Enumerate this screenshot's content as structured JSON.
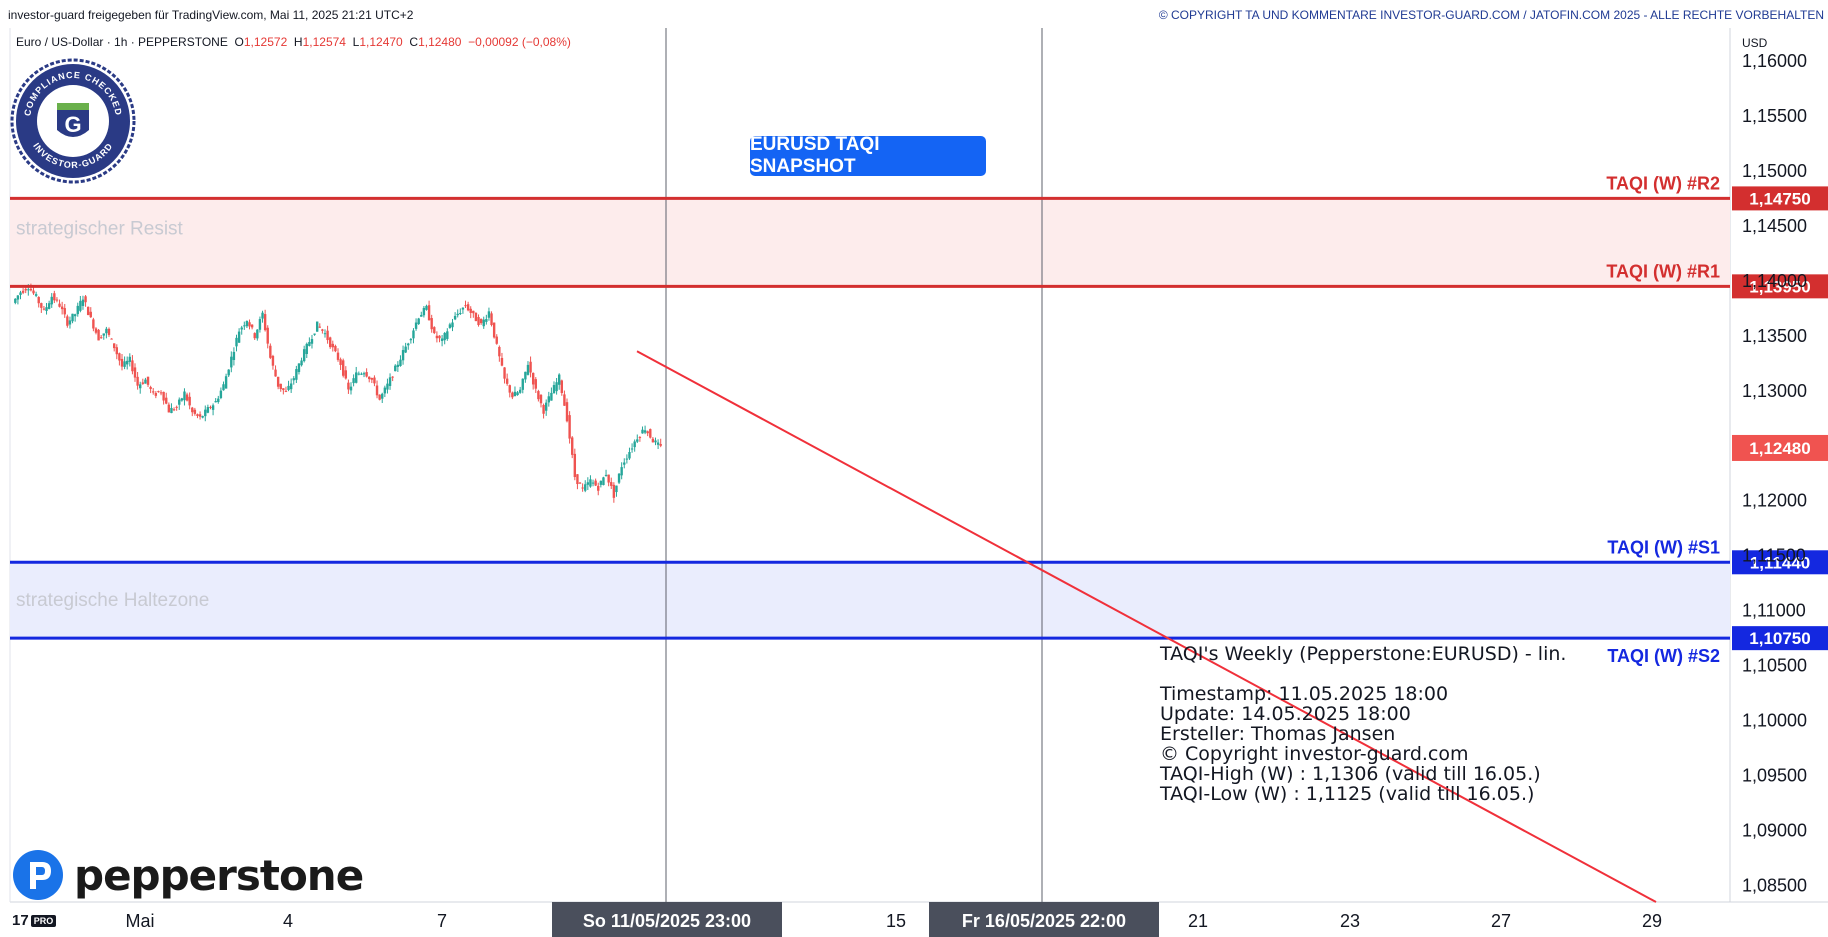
{
  "header": {
    "left_text": "investor-guard freigegeben für TradingView.com, Mai 11, 2025 21:21 UTC+2",
    "right_text": "© COPYRIGHT TA UND KOMMENTARE INVESTOR-GUARD.COM / JATOFIN.COM 2025 - ALLE RECHTE VORBEHALTEN"
  },
  "symbol": {
    "name": "Euro / US-Dollar · 1h · PEPPERSTONE",
    "o_label": "O",
    "o_value": "1,12572",
    "h_label": "H",
    "h_value": "1,12574",
    "l_label": "L",
    "l_value": "1,12470",
    "c_label": "C",
    "c_value": "1,12480",
    "change": "−0,00092 (−0,08%)"
  },
  "badge": {
    "top_text": "COMPLIANCE CHECKED",
    "bottom_text": "INVESTOR-GUARD",
    "letter": "G"
  },
  "snapshot_label": "EURUSD TAQI SNAPSHOT",
  "info_block": {
    "title": "TAQI's Weekly (Pepperstone:EURUSD) - lin.",
    "lines": [
      "Timestamp: 11.05.2025 18:00",
      "Update: 14.05.2025 18:00",
      "Ersteller: Thomas Jansen",
      "© Copyright investor-guard.com",
      "TAQI-High (W) : 1,1306 (valid till 16.05.)",
      "TAQI-Low (W) : 1,1125 (valid till 16.05.)"
    ]
  },
  "brand": {
    "name": "pepperstone",
    "tv_pro": "PRO"
  },
  "colors": {
    "resistance": "#d32f2f",
    "support": "#1428e0",
    "resist_zone": "#fdecec",
    "support_zone": "#eaedfd",
    "candle_up": "#26a69a",
    "candle_down": "#ef5350",
    "trendline": "#f0303a",
    "last_price_bg": "#f05350",
    "date_tag_bg": "#4a4f5c"
  },
  "chart_data": {
    "type": "candlestick",
    "currency": "USD",
    "ylim": [
      1.0835,
      1.163
    ],
    "y_ticks": [
      "1,16000",
      "1,15500",
      "1,15000",
      "1,14500",
      "1,14000",
      "1,13500",
      "1,13000",
      "1,12000",
      "1,11500",
      "1,11000",
      "1,10500",
      "1,10000",
      "1,09500",
      "1,09000",
      "1,08500"
    ],
    "x_ticks": [
      "Mai",
      "4",
      "7",
      "15",
      "21",
      "23",
      "27",
      "29"
    ],
    "date_tags": [
      "So 11/05/2025   23:00",
      "Fr 16/05/2025   22:00"
    ],
    "levels": [
      {
        "name": "TAQI (W) #R2",
        "value": 1.1475,
        "label": "1,14750",
        "kind": "resistance"
      },
      {
        "name": "TAQI (W) #R1",
        "value": 1.1395,
        "label": "1,13950",
        "kind": "resistance"
      },
      {
        "name": "TAQI (W) #S1",
        "value": 1.1144,
        "label": "1,11440",
        "kind": "support"
      },
      {
        "name": "TAQI (W) #S2",
        "value": 1.1075,
        "label": "1,10750",
        "kind": "support"
      }
    ],
    "zones": [
      {
        "label": "strategischer Resist",
        "from": 1.1395,
        "to": 1.1475
      },
      {
        "label": "strategische Haltezone",
        "from": 1.1075,
        "to": 1.1144
      }
    ],
    "last_price": {
      "value": 1.1248,
      "label": "1,12480"
    },
    "trendline": {
      "start": 1.1336,
      "end": 1.0835
    },
    "close_path": [
      1.138,
      1.139,
      1.1395,
      1.1385,
      1.1372,
      1.1386,
      1.1378,
      1.1362,
      1.137,
      1.1385,
      1.1365,
      1.1348,
      1.1355,
      1.134,
      1.1322,
      1.1328,
      1.1305,
      1.131,
      1.1296,
      1.13,
      1.1282,
      1.1285,
      1.1298,
      1.128,
      1.1275,
      1.1283,
      1.129,
      1.1305,
      1.133,
      1.1355,
      1.1365,
      1.135,
      1.137,
      1.133,
      1.1305,
      1.1298,
      1.1312,
      1.133,
      1.1345,
      1.136,
      1.1352,
      1.1338,
      1.1325,
      1.13,
      1.1315,
      1.1318,
      1.131,
      1.1292,
      1.1305,
      1.132,
      1.1335,
      1.135,
      1.1368,
      1.1375,
      1.135,
      1.1345,
      1.136,
      1.137,
      1.1378,
      1.1368,
      1.136,
      1.1372,
      1.134,
      1.131,
      1.1295,
      1.13,
      1.1325,
      1.13,
      1.1282,
      1.1298,
      1.1312,
      1.1275,
      1.1222,
      1.121,
      1.1218,
      1.1212,
      1.1225,
      1.1205,
      1.1232,
      1.1245,
      1.1258,
      1.1266,
      1.1255,
      1.1248
    ]
  }
}
